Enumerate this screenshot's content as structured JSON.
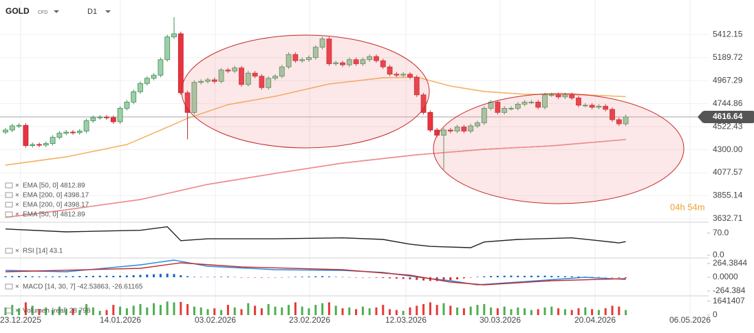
{
  "header": {
    "symbol": "GOLD",
    "instrument_type": "CFD",
    "timeframe": "D1"
  },
  "chart_data": [
    {
      "type": "candlestick",
      "open": [
        4470,
        4490,
        4530,
        4535,
        4340,
        4350,
        4345,
        4360,
        4420,
        4460,
        4470,
        4465,
        4480,
        4580,
        4610,
        4615,
        4610,
        4570,
        4700,
        4760,
        4860,
        4940,
        4990,
        5020,
        5170,
        5390,
        5420,
        4850,
        4660,
        4950,
        4960,
        4975,
        4960,
        5070,
        5060,
        5090,
        4930,
        5040,
        5010,
        4900,
        4990,
        5010,
        5100,
        5220,
        5160,
        5170,
        5190,
        5290,
        5370,
        5130,
        5140,
        5120,
        5170,
        5130,
        5170,
        5200,
        5160,
        5100,
        5030,
        5020,
        5030,
        5000,
        4830,
        4660,
        4490,
        4440,
        4490,
        4480,
        4520,
        4480,
        4530,
        4560,
        4700,
        4760,
        4660,
        4700,
        4700,
        4740,
        4760,
        4760,
        4710,
        4830,
        4830,
        4810,
        4830,
        4800,
        4730,
        4730,
        4710,
        4720,
        4690,
        4590,
        4550
      ],
      "high": [
        4510,
        4550,
        4555,
        4555,
        4370,
        4370,
        4380,
        4440,
        4480,
        4490,
        4490,
        4500,
        4600,
        4630,
        4635,
        4635,
        4630,
        4720,
        4780,
        4880,
        4960,
        5010,
        5040,
        5190,
        5410,
        5580,
        5440,
        4870,
        4970,
        4980,
        4995,
        4995,
        5090,
        5090,
        5110,
        5110,
        5060,
        5060,
        5030,
        5010,
        5030,
        5120,
        5240,
        5240,
        5190,
        5210,
        5310,
        5390,
        5390,
        5160,
        5160,
        5190,
        5190,
        5190,
        5220,
        5220,
        5180,
        5120,
        5050,
        5050,
        5050,
        5020,
        4850,
        4680,
        4510,
        4510,
        4510,
        4540,
        4540,
        4550,
        4580,
        4720,
        4780,
        4780,
        4720,
        4720,
        4760,
        4780,
        4780,
        4780,
        4850,
        4850,
        4850,
        4850,
        4850,
        4820,
        4750,
        4750,
        4740,
        4740,
        4710,
        4610,
        4640
      ],
      "low": [
        4450,
        4470,
        4510,
        4320,
        4320,
        4325,
        4325,
        4340,
        4400,
        4440,
        4445,
        4445,
        4460,
        4560,
        4590,
        4590,
        4550,
        4550,
        4680,
        4740,
        4840,
        4920,
        4970,
        5000,
        5150,
        5370,
        4830,
        4400,
        4640,
        4930,
        4940,
        4940,
        4940,
        5040,
        5040,
        4910,
        4910,
        4990,
        4880,
        4880,
        4970,
        4990,
        5080,
        5140,
        5140,
        5150,
        5170,
        5270,
        5110,
        5110,
        5100,
        5100,
        5110,
        5110,
        5150,
        5140,
        5080,
        5010,
        5000,
        5000,
        4980,
        4810,
        4640,
        4470,
        4420,
        4110,
        4460,
        4460,
        4460,
        4460,
        4510,
        4540,
        4680,
        4640,
        4640,
        4680,
        4680,
        4720,
        4740,
        4690,
        4690,
        4810,
        4790,
        4790,
        4780,
        4710,
        4710,
        4690,
        4690,
        4670,
        4570,
        4530,
        4530
      ],
      "close": [
        4490,
        4530,
        4535,
        4340,
        4350,
        4345,
        4360,
        4420,
        4460,
        4470,
        4465,
        4480,
        4580,
        4610,
        4615,
        4610,
        4570,
        4700,
        4760,
        4860,
        4940,
        4990,
        5020,
        5170,
        5390,
        5420,
        4850,
        4660,
        4950,
        4960,
        4975,
        4960,
        5070,
        5060,
        5090,
        4930,
        5040,
        5010,
        4900,
        4990,
        5010,
        5100,
        5220,
        5160,
        5170,
        5190,
        5290,
        5370,
        5130,
        5140,
        5120,
        5170,
        5130,
        5170,
        5200,
        5160,
        5100,
        5030,
        5020,
        5030,
        5000,
        4830,
        4660,
        4490,
        4440,
        4490,
        4480,
        4520,
        4480,
        4530,
        4560,
        4700,
        4760,
        4660,
        4700,
        4700,
        4740,
        4760,
        4760,
        4710,
        4830,
        4830,
        4810,
        4830,
        4800,
        4730,
        4730,
        4710,
        4720,
        4690,
        4590,
        4550,
        4616.64
      ],
      "up_color": "#9ccfa8",
      "down_color": "#e8343f",
      "ylim": [
        3632.71,
        5693
      ],
      "yticks": [
        5412.15,
        5189.72,
        4967.29,
        4744.86,
        4522.43,
        {
          "value": 4300,
          "label": "4300.00"
        },
        4077.57,
        3855.14,
        3632.71
      ],
      "last_price": 4616.64,
      "countdown": "04h 54m",
      "dates": [
        "23.12.2025",
        "14.01.2026",
        "03.02.2026",
        "23.02.2026",
        "12.03.2026",
        "30.03.2026",
        "20.04.2026",
        "06.05.2026"
      ],
      "series": [
        {
          "name": "EMA [50, 0] 4812.89",
          "color": "#f29b1d",
          "x": [
            0,
            9,
            18,
            24,
            27,
            33,
            40,
            48,
            56,
            61,
            66,
            71,
            77,
            86,
            92
          ],
          "values": [
            4151,
            4231,
            4350,
            4517,
            4603,
            4736,
            4816,
            4935,
            4995,
            5002,
            4915,
            4862,
            4836,
            4829,
            4812.89
          ]
        },
        {
          "name": "EMA [200, 0] 4398.17",
          "color": "#d8342c",
          "x": [
            0,
            9,
            20,
            30,
            40,
            50,
            61,
            71,
            81,
            92
          ],
          "values": [
            3646,
            3719,
            3819,
            3965,
            4071,
            4171,
            4251,
            4304,
            4337,
            4398.17
          ]
        },
        {
          "name": "EMA [200, 0] 4398.17",
          "color": "#ef8f8f",
          "x": [
            0,
            9,
            20,
            30,
            40,
            50,
            61,
            71,
            81,
            92
          ],
          "values": [
            3646,
            3719,
            3819,
            3965,
            4071,
            4171,
            4251,
            4304,
            4337,
            4398.17
          ]
        },
        {
          "name": "EMA [50, 0] 4812.89",
          "color": "#f6b26b",
          "x": [
            0,
            9,
            18,
            24,
            27,
            33,
            40,
            48,
            56,
            61,
            66,
            71,
            77,
            86,
            92
          ],
          "values": [
            4151,
            4231,
            4350,
            4517,
            4603,
            4736,
            4816,
            4935,
            4995,
            5002,
            4915,
            4862,
            4836,
            4829,
            4812.89
          ]
        }
      ]
    },
    {
      "type": "line",
      "ylim": [
        0,
        100
      ],
      "yticks": [
        {
          "value": 70,
          "label": "70.0"
        },
        {
          "value": 0,
          "label": "0.0"
        }
      ],
      "series": [
        {
          "name": "RSI [14] 43.1",
          "color": "#222222",
          "x": [
            0,
            9,
            20,
            24,
            26,
            30,
            40,
            50,
            56,
            60,
            63,
            69,
            71,
            76,
            84,
            88,
            91,
            92
          ],
          "values": [
            83,
            74,
            79,
            90,
            46,
            52,
            52,
            55,
            50,
            35,
            28,
            24,
            42,
            50,
            55,
            46,
            39,
            43.1
          ]
        }
      ]
    },
    {
      "type": "macd",
      "title": "MACD [14, 30, 7] -42.53863, -26.61165",
      "ylim": [
        -343.7,
        343.7
      ],
      "yticks": [
        264.3844,
        {
          "value": 0,
          "label": "0.0000"
        },
        -264.384
      ],
      "positive_color": "#1565c0",
      "negative_color": "#d32f2f",
      "histogram": [
        20,
        22,
        25,
        24,
        18,
        15,
        14,
        16,
        18,
        20,
        22,
        24,
        26,
        28,
        30,
        30,
        28,
        30,
        34,
        40,
        46,
        52,
        58,
        64,
        70,
        62,
        40,
        20,
        8,
        6,
        5,
        8,
        10,
        12,
        6,
        -5,
        -6,
        -4,
        -8,
        -6,
        -4,
        -2,
        5,
        10,
        12,
        14,
        18,
        22,
        15,
        8,
        5,
        2,
        -2,
        -4,
        -6,
        -10,
        -14,
        -20,
        -26,
        -32,
        -40,
        -50,
        -62,
        -70,
        -72,
        -66,
        -55,
        -40,
        -20,
        -5,
        8,
        18,
        24,
        28,
        30,
        32,
        30,
        28,
        30,
        32,
        30,
        26,
        22,
        20,
        18,
        14,
        10,
        8,
        6,
        2,
        -4,
        -10,
        -15
      ],
      "series": [
        {
          "name": "MACD",
          "color": "#1e88e5",
          "x": [
            0,
            9,
            20,
            25,
            30,
            40,
            50,
            56,
            63,
            66,
            70,
            76,
            86,
            92
          ],
          "values": [
            132,
            106,
            238,
            330,
            212,
            145,
            132,
            93,
            -26,
            -66,
            -145,
            -93,
            0,
            -42.53863
          ]
        },
        {
          "name": "Signal",
          "color": "#c62828",
          "x": [
            0,
            20,
            26,
            35,
            50,
            60,
            66,
            71,
            81,
            92
          ],
          "values": [
            106,
            172,
            278,
            198,
            145,
            40,
            -93,
            -145,
            -66,
            -26.61165
          ]
        }
      ]
    },
    {
      "type": "bar",
      "title": "Volumen (real) 28 798",
      "ylim": [
        0,
        2100000
      ],
      "yticks": [
        1641407,
        0
      ],
      "up_color": "#4caf50",
      "down_color": "#e53935",
      "values": [
        900000,
        1200000,
        800000,
        1500000,
        1100000,
        700000,
        900000,
        600000,
        1000000,
        700000,
        800000,
        600000,
        1300000,
        900000,
        500000,
        600000,
        1200000,
        1000000,
        800000,
        1100000,
        1300000,
        900000,
        1400000,
        1200000,
        1600000,
        1500000,
        1550000,
        1300000,
        1000000,
        900000,
        700000,
        800000,
        600000,
        1200000,
        900000,
        700000,
        1400000,
        1100000,
        800000,
        1300000,
        1000000,
        900000,
        1200000,
        1500000,
        1000000,
        800000,
        1200000,
        1400000,
        1500000,
        1100000,
        800000,
        900000,
        700000,
        1000000,
        800000,
        900000,
        1200000,
        700000,
        600000,
        500000,
        900000,
        1100000,
        1300000,
        1500000,
        1200000,
        1400000,
        1100000,
        900000,
        800000,
        1000000,
        1200000,
        1300000,
        900000,
        800000,
        1000000,
        700000,
        900000,
        800000,
        600000,
        700000,
        900000,
        1000000,
        800000,
        700000,
        600000,
        800000,
        900000,
        700000,
        600000,
        800000,
        1100000,
        1000000,
        600000
      ]
    }
  ]
}
